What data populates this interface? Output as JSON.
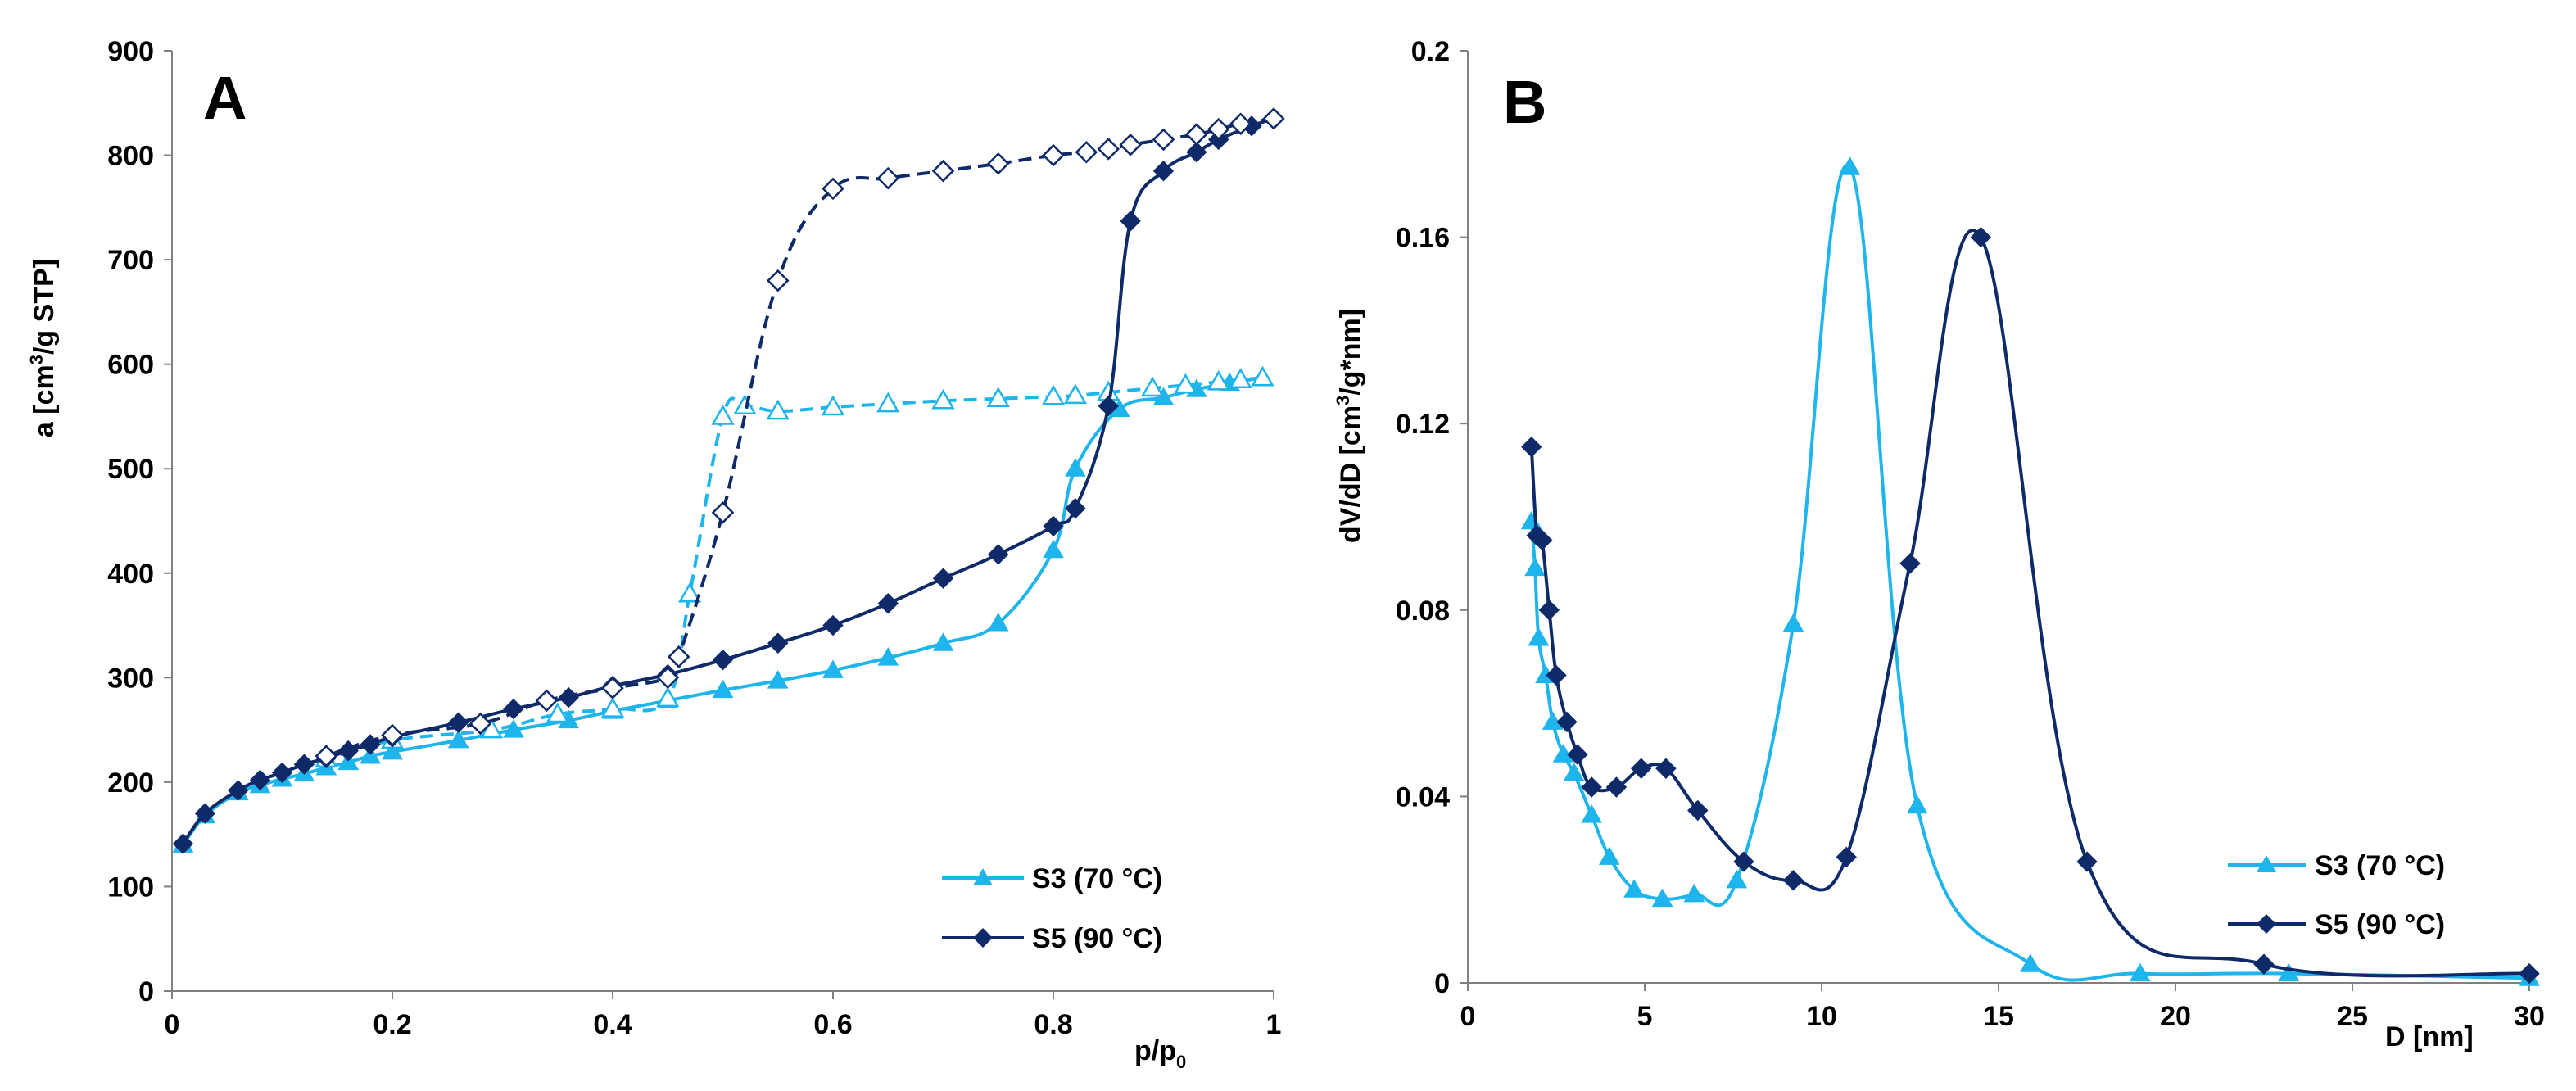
{
  "chart_data": [
    {
      "panel": "A",
      "type": "line",
      "title": "",
      "panel_label": "A",
      "xlabel": "p/p",
      "xlabel_sub": "0",
      "ylabel_pre": "a [cm",
      "ylabel_sup": "3",
      "ylabel_post": "/g STP]",
      "xlim": [
        0,
        1
      ],
      "ylim": [
        0,
        900
      ],
      "xticks": [
        0,
        0.2,
        0.4,
        0.6,
        0.8,
        1
      ],
      "xtick_labels": [
        "0",
        "0.2",
        "0.4",
        "0.6",
        "0.8",
        "1"
      ],
      "yticks": [
        0,
        100,
        200,
        300,
        400,
        500,
        600,
        700,
        800,
        900
      ],
      "ytick_labels": [
        "0",
        "100",
        "200",
        "300",
        "400",
        "500",
        "600",
        "700",
        "800",
        "900"
      ],
      "grid": false,
      "legend_position": "bottom-right",
      "legend": [
        "S3 (70 °C)",
        "S5 (90 °C)"
      ],
      "series": [
        {
          "name": "S3 (70 °C) adsorption",
          "color": "#1EB4EC",
          "marker": "triangle",
          "filled": true,
          "dash": false,
          "x": [
            0.01,
            0.03,
            0.06,
            0.08,
            0.1,
            0.12,
            0.14,
            0.16,
            0.18,
            0.2,
            0.26,
            0.31,
            0.36,
            0.4,
            0.45,
            0.5,
            0.55,
            0.6,
            0.65,
            0.7,
            0.75,
            0.8,
            0.82,
            0.86,
            0.9,
            0.93,
            0.96,
            0.99
          ],
          "y": [
            140,
            168,
            190,
            197,
            203,
            208,
            214,
            219,
            225,
            229,
            240,
            250,
            259,
            268,
            278,
            288,
            297,
            307,
            319,
            333,
            352,
            422,
            500,
            557,
            568,
            576,
            582,
            587
          ]
        },
        {
          "name": "S3 (70 °C) desorption",
          "color": "#1EB4EC",
          "marker": "triangle",
          "filled": false,
          "dash": true,
          "x": [
            0.99,
            0.97,
            0.95,
            0.92,
            0.89,
            0.85,
            0.82,
            0.8,
            0.75,
            0.7,
            0.65,
            0.6,
            0.55,
            0.52,
            0.5,
            0.47,
            0.45,
            0.4,
            0.35,
            0.29,
            0.2,
            0.14
          ],
          "y": [
            587,
            585,
            583,
            580,
            577,
            573,
            570,
            569,
            567,
            565,
            562,
            559,
            555,
            560,
            550,
            380,
            280,
            270,
            265,
            250,
            240,
            222
          ]
        },
        {
          "name": "S5 (90 °C) adsorption",
          "color": "#0E2A68",
          "marker": "diamond",
          "filled": true,
          "dash": false,
          "x": [
            0.01,
            0.03,
            0.06,
            0.08,
            0.1,
            0.12,
            0.14,
            0.16,
            0.18,
            0.2,
            0.26,
            0.31,
            0.36,
            0.4,
            0.45,
            0.5,
            0.55,
            0.6,
            0.65,
            0.7,
            0.75,
            0.8,
            0.82,
            0.85,
            0.87,
            0.9,
            0.93,
            0.95,
            0.98,
            1.0
          ],
          "y": [
            141,
            170,
            192,
            202,
            209,
            217,
            223,
            230,
            236,
            243,
            257,
            270,
            281,
            292,
            303,
            317,
            333,
            350,
            371,
            395,
            418,
            445,
            462,
            560,
            737,
            785,
            803,
            815,
            828,
            835
          ]
        },
        {
          "name": "S5 (90 °C) desorption",
          "color": "#0E2A68",
          "marker": "diamond",
          "filled": false,
          "dash": true,
          "x": [
            1.0,
            0.97,
            0.95,
            0.93,
            0.9,
            0.87,
            0.85,
            0.83,
            0.8,
            0.75,
            0.7,
            0.65,
            0.6,
            0.55,
            0.5,
            0.46,
            0.45,
            0.4,
            0.34,
            0.28,
            0.2,
            0.14
          ],
          "y": [
            835,
            830,
            825,
            820,
            815,
            810,
            806,
            803,
            800,
            792,
            785,
            778,
            768,
            680,
            458,
            320,
            300,
            290,
            278,
            256,
            245,
            225
          ]
        }
      ]
    },
    {
      "panel": "B",
      "type": "line",
      "title": "",
      "panel_label": "B",
      "xlabel": "D [nm]",
      "ylabel_pre": "dV/dD [cm",
      "ylabel_sup": "3",
      "ylabel_post": "/g*nm]",
      "xlim": [
        0,
        30
      ],
      "ylim": [
        0,
        0.2
      ],
      "xticks": [
        0,
        5,
        10,
        15,
        20,
        25,
        30
      ],
      "xtick_labels": [
        "0",
        "5",
        "10",
        "15",
        "20",
        "25",
        "30"
      ],
      "yticks": [
        0,
        0.04,
        0.08,
        0.12,
        0.16,
        0.2
      ],
      "ytick_labels": [
        "0",
        "0.04",
        "0.08",
        "0.12",
        "0.16",
        "0.2"
      ],
      "grid": false,
      "legend_position": "bottom-right",
      "legend": [
        "S3 (70 °C)",
        "S5 (90 °C)"
      ],
      "series": [
        {
          "name": "S3 (70 °C)",
          "color": "#1EB4EC",
          "marker": "triangle",
          "filled": true,
          "dash": false,
          "x": [
            1.8,
            1.9,
            2.0,
            2.2,
            2.4,
            2.7,
            3.0,
            3.5,
            4.0,
            4.7,
            5.5,
            6.4,
            7.6,
            9.2,
            10.8,
            12.7,
            15.9,
            19.0,
            23.2,
            30.0
          ],
          "y": [
            0.099,
            0.089,
            0.074,
            0.066,
            0.056,
            0.049,
            0.045,
            0.036,
            0.027,
            0.02,
            0.018,
            0.019,
            0.022,
            0.077,
            0.175,
            0.038,
            0.004,
            0.002,
            0.002,
            0.001
          ]
        },
        {
          "name": "S5 (90 °C)",
          "color": "#0E2A68",
          "marker": "diamond",
          "filled": true,
          "dash": false,
          "x": [
            1.8,
            1.95,
            2.1,
            2.3,
            2.5,
            2.8,
            3.1,
            3.5,
            4.2,
            4.9,
            5.6,
            6.5,
            7.8,
            9.2,
            10.7,
            12.5,
            14.5,
            17.5,
            22.5,
            30.0
          ],
          "y": [
            0.115,
            0.096,
            0.095,
            0.08,
            0.066,
            0.056,
            0.049,
            0.042,
            0.042,
            0.046,
            0.046,
            0.037,
            0.026,
            0.022,
            0.027,
            0.09,
            0.16,
            0.026,
            0.004,
            0.002
          ]
        }
      ]
    }
  ]
}
